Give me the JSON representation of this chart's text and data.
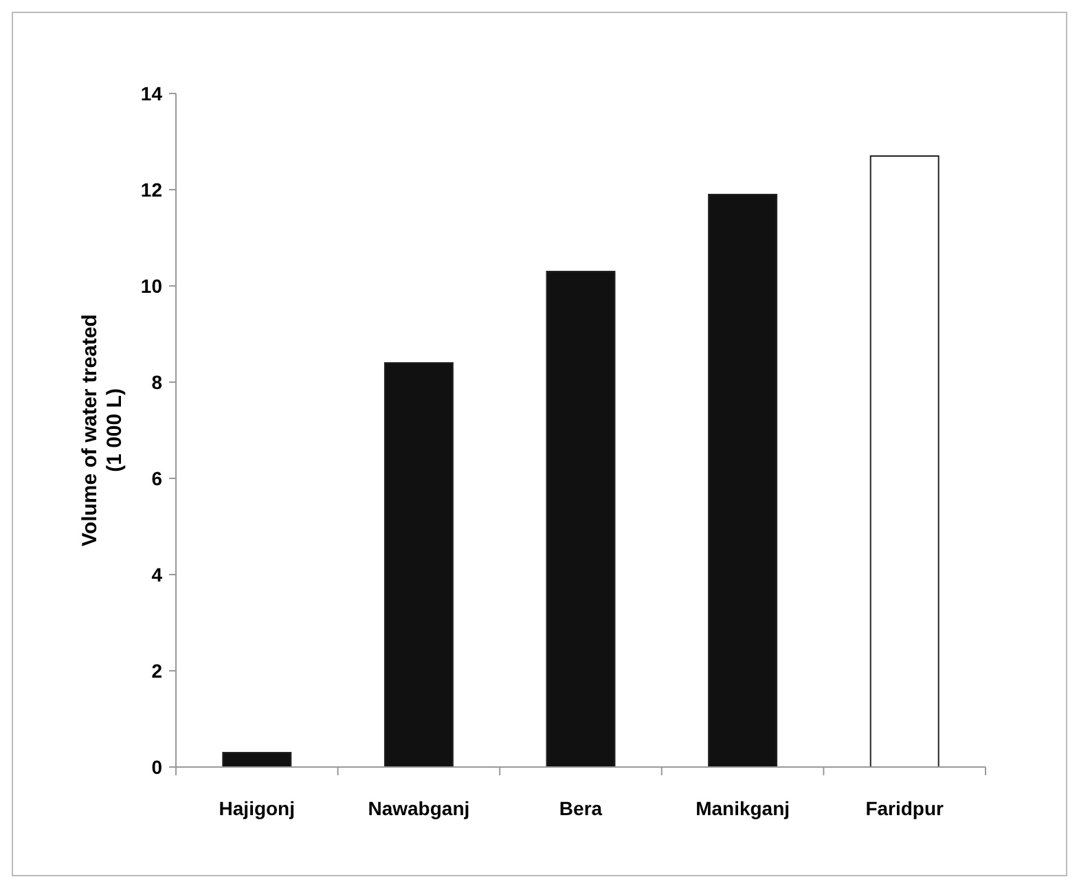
{
  "chart_data": {
    "type": "bar",
    "ylabel": "Volume of water treated\n(1 000 L)",
    "categories": [
      "Hajigonj",
      "Nawabganj",
      "Bera",
      "Manikganj",
      "Faridpur"
    ],
    "values": [
      0.3,
      8.4,
      10.3,
      11.9,
      12.7
    ],
    "colors": [
      "#111111",
      "#111111",
      "#111111",
      "#111111",
      "#ffffff"
    ],
    "ylim": [
      0,
      14
    ],
    "yticks": [
      0,
      2,
      4,
      6,
      8,
      10,
      12,
      14
    ],
    "grid": false
  }
}
